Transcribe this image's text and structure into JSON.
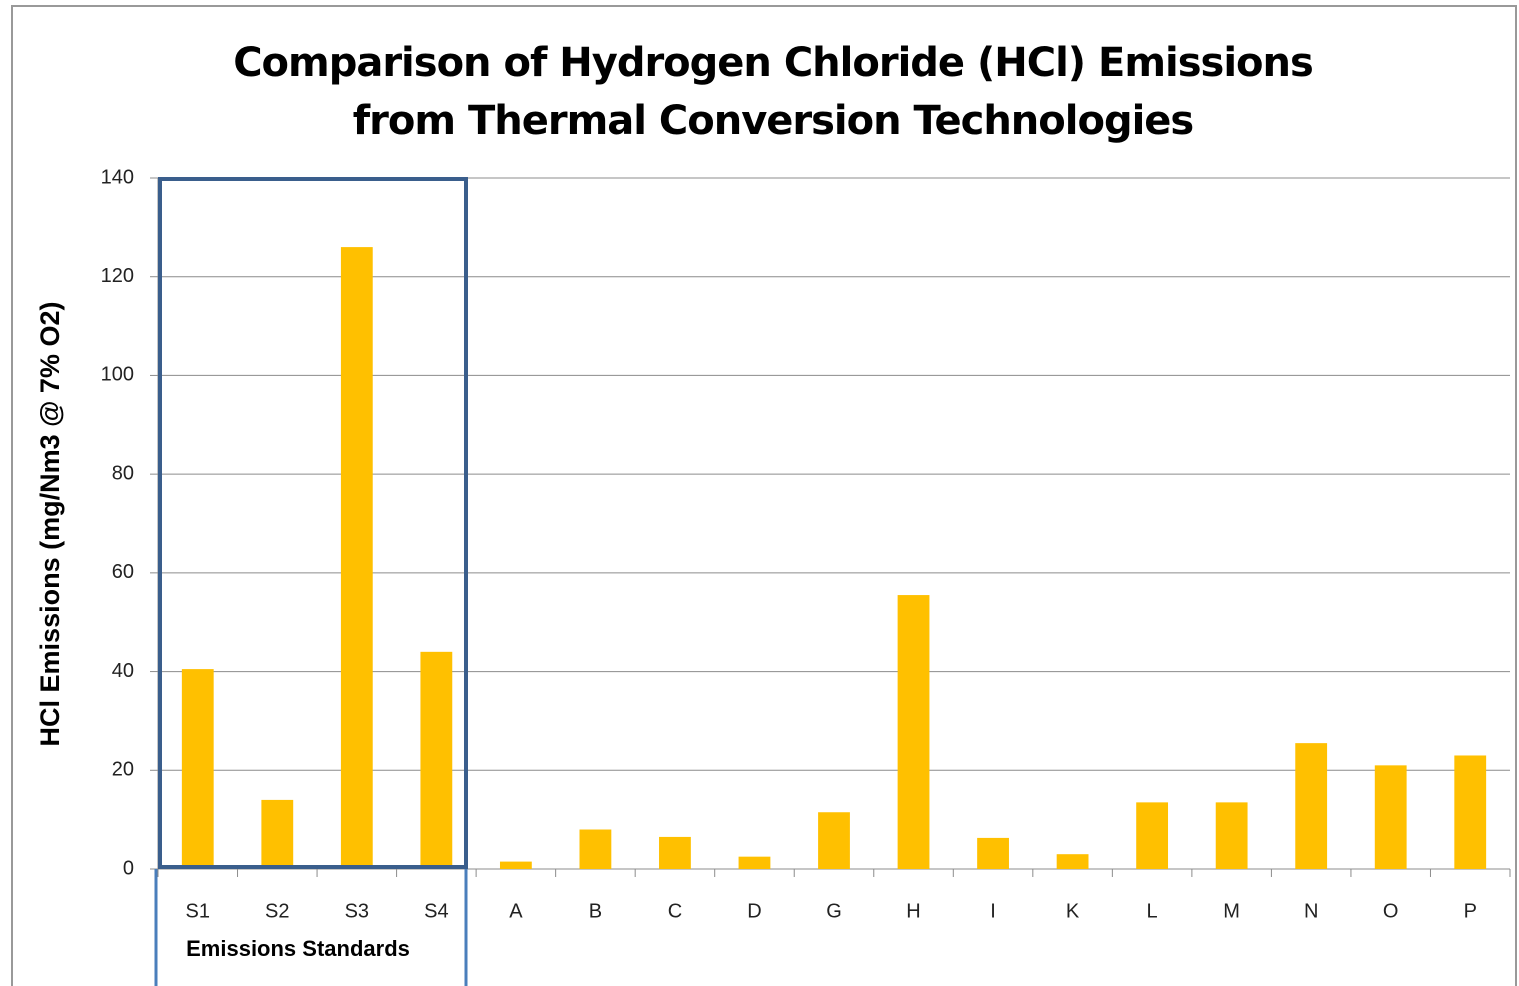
{
  "chart_data": {
    "type": "bar",
    "title": "Comparison of Hydrogen Chloride (HCl) Emissions from Thermal Conversion Technologies",
    "y_label": "HCl Emissions (mg/Nm3 @ 7% O2)",
    "annotation": "Emissions Standards",
    "categories": [
      "S1",
      "S2",
      "S3",
      "S4",
      "A",
      "B",
      "C",
      "D",
      "G",
      "H",
      "I",
      "K",
      "L",
      "M",
      "N",
      "O",
      "P"
    ],
    "values": [
      40.5,
      14,
      126,
      44,
      1.5,
      8,
      6.5,
      2.5,
      11.5,
      55.5,
      6.3,
      3,
      13.5,
      13.5,
      25.5,
      21,
      23
    ],
    "color": "#ffc000",
    "ylim": [
      0,
      140
    ],
    "yticks": [
      0,
      20,
      40,
      60,
      80,
      100,
      120,
      140
    ],
    "grid": true
  }
}
